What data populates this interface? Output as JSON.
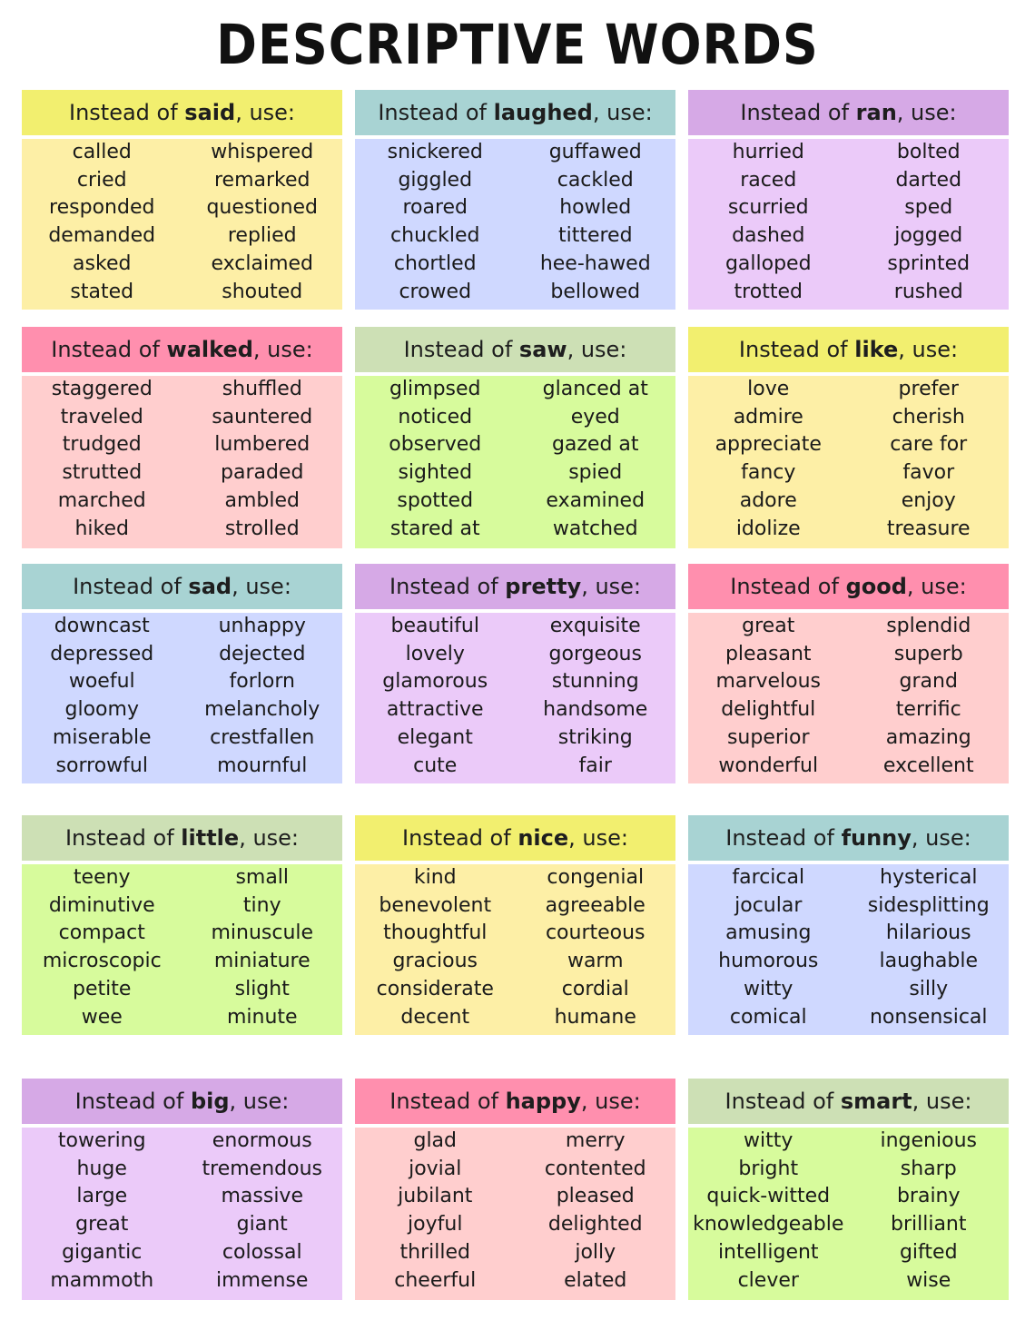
{
  "title": "DESCRIPTIVE WORDS",
  "prefix": "Instead of ",
  "suffix": ", use:",
  "cards": [
    {
      "word": "said",
      "head_color": "#f2ef6f",
      "body_color": "#fdefa6",
      "left": [
        "called",
        "cried",
        "responded",
        "demanded",
        "asked",
        "stated"
      ],
      "right": [
        "whispered",
        "remarked",
        "questioned",
        "replied",
        "exclaimed",
        "shouted"
      ]
    },
    {
      "word": "laughed",
      "head_color": "#a8d3d3",
      "body_color": "#cfd8ff",
      "left": [
        "snickered",
        "giggled",
        "roared",
        "chuckled",
        "chortled",
        "crowed"
      ],
      "right": [
        "guffawed",
        "cackled",
        "howled",
        "tittered",
        "hee-hawed",
        "bellowed"
      ]
    },
    {
      "word": "ran",
      "head_color": "#d6a9e6",
      "body_color": "#ebcaf9",
      "left": [
        "hurried",
        "raced",
        "scurried",
        "dashed",
        "galloped",
        "trotted"
      ],
      "right": [
        "bolted",
        "darted",
        "sped",
        "jogged",
        "sprinted",
        "rushed"
      ]
    },
    {
      "word": "walked",
      "head_color": "#ff8fae",
      "body_color": "#ffcece",
      "left": [
        "staggered",
        "traveled",
        "trudged",
        "strutted",
        "marched",
        "hiked"
      ],
      "right": [
        "shuffled",
        "sauntered",
        "lumbered",
        "paraded",
        "ambled",
        "strolled"
      ]
    },
    {
      "word": "saw",
      "head_color": "#cde0b5",
      "body_color": "#d7fb9c",
      "left": [
        "glimpsed",
        "noticed",
        "observed",
        "sighted",
        "spotted",
        "stared at"
      ],
      "right": [
        "glanced at",
        "eyed",
        "gazed at",
        "spied",
        "examined",
        "watched"
      ]
    },
    {
      "word": "like",
      "head_color": "#f2ef6f",
      "body_color": "#fdefa6",
      "left": [
        "love",
        "admire",
        "appreciate",
        "fancy",
        "adore",
        "idolize"
      ],
      "right": [
        "prefer",
        "cherish",
        "care for",
        "favor",
        "enjoy",
        "treasure"
      ]
    },
    {
      "word": "sad",
      "head_color": "#a8d3d3",
      "body_color": "#cfd8ff",
      "left": [
        "downcast",
        "depressed",
        "woeful",
        "gloomy",
        "miserable",
        "sorrowful"
      ],
      "right": [
        "unhappy",
        "dejected",
        "forlorn",
        "melancholy",
        "crestfallen",
        "mournful"
      ]
    },
    {
      "word": "pretty",
      "head_color": "#d6a9e6",
      "body_color": "#ebcaf9",
      "left": [
        "beautiful",
        "lovely",
        "glamorous",
        "attractive",
        "elegant",
        "cute"
      ],
      "right": [
        "exquisite",
        "gorgeous",
        "stunning",
        "handsome",
        "striking",
        "fair"
      ]
    },
    {
      "word": "good",
      "head_color": "#ff8fae",
      "body_color": "#ffcece",
      "left": [
        "great",
        "pleasant",
        "marvelous",
        "delightful",
        "superior",
        "wonderful"
      ],
      "right": [
        "splendid",
        "superb",
        "grand",
        "terrific",
        "amazing",
        "excellent"
      ]
    },
    {
      "word": "little",
      "head_color": "#cde0b5",
      "body_color": "#d7fb9c",
      "left": [
        "teeny",
        "diminutive",
        "compact",
        "microscopic",
        "petite",
        "wee"
      ],
      "right": [
        "small",
        "tiny",
        "minuscule",
        "miniature",
        "slight",
        "minute"
      ]
    },
    {
      "word": "nice",
      "head_color": "#f2ef6f",
      "body_color": "#fdefa6",
      "left": [
        "kind",
        "benevolent",
        "thoughtful",
        "gracious",
        "considerate",
        "decent"
      ],
      "right": [
        "congenial",
        "agreeable",
        "courteous",
        "warm",
        "cordial",
        "humane"
      ]
    },
    {
      "word": "funny",
      "head_color": "#a8d3d3",
      "body_color": "#cfd8ff",
      "left": [
        "farcical",
        "jocular",
        "amusing",
        "humorous",
        "witty",
        "comical"
      ],
      "right": [
        "hysterical",
        "sidesplitting",
        "hilarious",
        "laughable",
        "silly",
        "nonsensical"
      ]
    },
    {
      "word": "big",
      "head_color": "#d6a9e6",
      "body_color": "#ebcaf9",
      "left": [
        "towering",
        "huge",
        "large",
        "great",
        "gigantic",
        "mammoth"
      ],
      "right": [
        "enormous",
        "tremendous",
        "massive",
        "giant",
        "colossal",
        "immense"
      ]
    },
    {
      "word": "happy",
      "head_color": "#ff8fae",
      "body_color": "#ffcece",
      "left": [
        "glad",
        "jovial",
        "jubilant",
        "joyful",
        "thrilled",
        "cheerful"
      ],
      "right": [
        "merry",
        "contented",
        "pleased",
        "delighted",
        "jolly",
        "elated"
      ]
    },
    {
      "word": "smart",
      "head_color": "#cde0b5",
      "body_color": "#d7fb9c",
      "left": [
        "witty",
        "bright",
        "quick-witted",
        "knowledgeable",
        "intelligent",
        "clever"
      ],
      "right": [
        "ingenious",
        "sharp",
        "brainy",
        "brilliant",
        "gifted",
        "wise"
      ]
    }
  ]
}
